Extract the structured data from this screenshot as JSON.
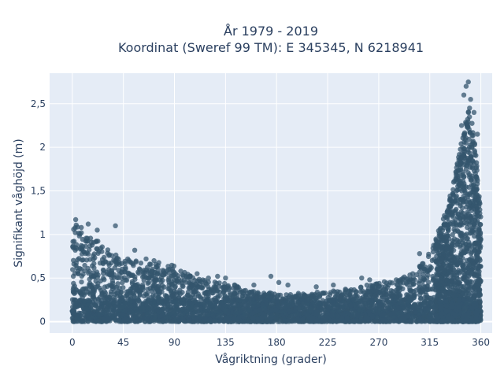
{
  "chart_data": {
    "type": "scatter",
    "title_line1": "År 1979 - 2019",
    "title_line2": "Koordinat (Sweref 99 TM): E 345345, N 6218941",
    "xlabel": "Vågriktning (grader)",
    "ylabel": "Signifikant våghöjd (m)",
    "xlim": [
      -20,
      370
    ],
    "ylim": [
      -0.13,
      2.85
    ],
    "x_ticks": [
      0,
      45,
      90,
      135,
      180,
      225,
      270,
      315,
      360
    ],
    "x_tick_labels": [
      "0",
      "45",
      "90",
      "135",
      "180",
      "225",
      "270",
      "315",
      "360"
    ],
    "y_ticks": [
      0,
      0.5,
      1,
      1.5,
      2,
      2.5
    ],
    "y_tick_labels": [
      "0",
      "0,5",
      "1",
      "1,5",
      "2",
      "2,5"
    ],
    "grid": true,
    "marker_color": "#34566e",
    "plot_background": "#e5ecf6",
    "upper_envelope": {
      "x": [
        0,
        10,
        20,
        30,
        45,
        60,
        75,
        90,
        105,
        120,
        135,
        150,
        165,
        180,
        195,
        210,
        225,
        240,
        255,
        270,
        285,
        300,
        310,
        320,
        330,
        335,
        340,
        345,
        350,
        355,
        360
      ],
      "y": [
        1.15,
        1.05,
        0.95,
        0.85,
        0.75,
        0.68,
        0.68,
        0.65,
        0.52,
        0.48,
        0.45,
        0.4,
        0.35,
        0.33,
        0.33,
        0.33,
        0.35,
        0.38,
        0.42,
        0.45,
        0.48,
        0.55,
        0.7,
        0.95,
        1.3,
        1.55,
        1.9,
        2.3,
        2.5,
        2.0,
        1.3
      ]
    },
    "outliers": {
      "x": [
        3,
        8,
        14,
        22,
        38,
        55,
        65,
        72,
        110,
        120,
        128,
        135,
        160,
        175,
        182,
        190,
        215,
        230,
        255,
        262,
        280,
        300,
        306,
        318,
        324,
        330,
        336,
        343,
        345,
        347,
        349,
        351,
        354,
        357
      ],
      "y": [
        1.17,
        1.08,
        1.12,
        1.05,
        1.1,
        0.82,
        0.72,
        0.7,
        0.55,
        0.5,
        0.52,
        0.5,
        0.42,
        0.52,
        0.45,
        0.42,
        0.4,
        0.42,
        0.5,
        0.48,
        0.45,
        0.55,
        0.78,
        0.8,
        0.85,
        1.0,
        1.6,
        2.25,
        2.6,
        2.7,
        2.75,
        2.55,
        2.4,
        2.15
      ]
    }
  }
}
